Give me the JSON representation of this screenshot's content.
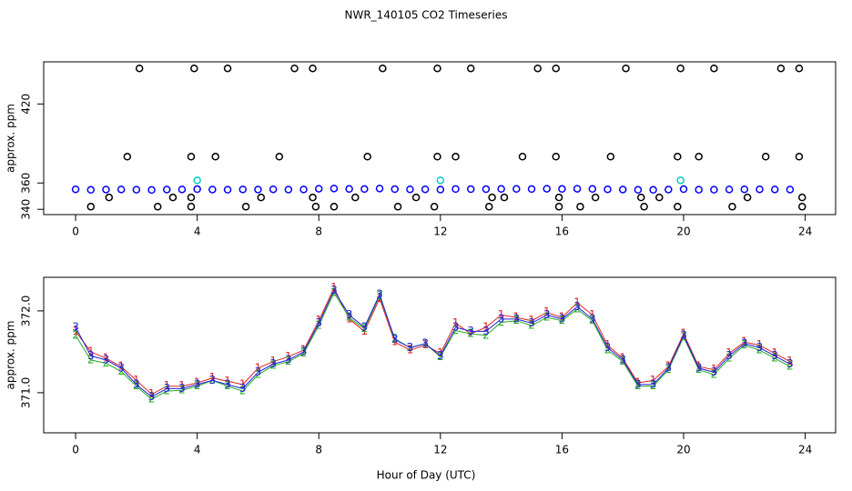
{
  "chart_data": [
    {
      "type": "scatter",
      "title": "NWR_140105  CO2 Timeseries",
      "ylabel": "approx. ppm",
      "xlim": [
        -1.05,
        25.0
      ],
      "xticks": [
        0,
        4,
        8,
        12,
        16,
        20,
        24
      ],
      "ylim": [
        336,
        452
      ],
      "yticks": [
        340,
        360,
        420
      ],
      "series": [
        {
          "color": "#0000ff",
          "x": [
            0,
            0.5,
            1,
            1.5,
            2,
            2.5,
            3,
            3.5,
            4,
            4.5,
            5,
            5.5,
            6,
            6.5,
            7,
            7.5,
            8,
            8.5,
            9,
            9.5,
            10,
            10.5,
            11,
            11.5,
            12,
            12.5,
            13,
            13.5,
            14,
            14.5,
            15,
            15.5,
            16,
            16.5,
            17,
            17.5,
            18,
            18.5,
            19,
            19.5,
            20,
            20.5,
            21,
            21.5,
            22,
            22.5,
            23,
            23.5
          ],
          "values": [
            355.2,
            354.8,
            355.0,
            355.1,
            354.9,
            354.7,
            355.0,
            355.1,
            355.3,
            355.0,
            354.9,
            355.1,
            355.0,
            355.2,
            355.0,
            355.1,
            355.6,
            355.8,
            355.5,
            355.4,
            355.8,
            355.3,
            355.2,
            355.2,
            355.0,
            355.4,
            355.3,
            355.3,
            355.5,
            355.5,
            355.4,
            355.6,
            355.5,
            355.6,
            355.5,
            355.2,
            355.0,
            354.8,
            354.8,
            355.0,
            355.3,
            354.9,
            354.9,
            355.1,
            355.2,
            355.2,
            355.1,
            355.0
          ]
        },
        {
          "color": "#000000",
          "x": [
            2.1,
            3.9,
            5,
            7.2,
            7.8,
            10.1,
            11.9,
            13,
            15.2,
            15.8,
            18.1,
            19.9,
            21,
            23.2,
            23.8,
            1.7,
            3.8,
            4.6,
            6.7,
            9.6,
            11.9,
            12.5,
            14.7,
            15.8,
            17.6,
            19.8,
            20.5,
            22.7,
            23.8,
            1.1,
            3.2,
            3.8,
            6.1,
            7.8,
            9.2,
            11.2,
            13.7,
            14.1,
            15.9,
            17.1,
            18.6,
            19.2,
            22.1,
            23.9,
            0.5,
            2.7,
            3.8,
            5.6,
            7.9,
            8.5,
            10.6,
            11.8,
            13.6,
            15.9,
            16.6,
            18.7,
            19.8,
            21.6,
            23.9
          ],
          "values": [
            447,
            447,
            447,
            447,
            447,
            447,
            447,
            447,
            447,
            447,
            447,
            447,
            447,
            447,
            447,
            380,
            380,
            380,
            380,
            380,
            380,
            380,
            380,
            380,
            380,
            380,
            380,
            380,
            380,
            349,
            349,
            349,
            349,
            349,
            349,
            349,
            349,
            349,
            349,
            349,
            349,
            349,
            349,
            349,
            342,
            342,
            342,
            342,
            342,
            342,
            342,
            342,
            342,
            342,
            342,
            342,
            342,
            342,
            342
          ]
        },
        {
          "color": "#00cccc",
          "x": [
            4,
            12,
            19.9
          ],
          "values": [
            362,
            362,
            362
          ]
        }
      ]
    },
    {
      "type": "line",
      "ylabel": "approx. ppm",
      "xlabel": "Hour of Day (UTC)",
      "xlim": [
        -1.05,
        25.0
      ],
      "xticks": [
        0,
        4,
        8,
        12,
        16,
        20,
        24
      ],
      "ylim": [
        370.51,
        372.41
      ],
      "yticks": [
        {
          "value": 371.0,
          "label": "371.0"
        },
        {
          "value": 372.0,
          "label": "372.0"
        }
      ],
      "x": [
        0,
        0.5,
        1,
        1.5,
        2,
        2.5,
        3,
        3.5,
        4,
        4.5,
        5,
        5.5,
        6,
        6.5,
        7,
        7.5,
        8,
        8.5,
        9,
        9.5,
        10,
        10.5,
        11,
        11.5,
        12,
        12.5,
        13,
        13.5,
        14,
        14.5,
        15,
        15.5,
        16,
        16.5,
        17,
        17.5,
        18,
        18.5,
        19,
        19.5,
        20,
        20.5,
        21,
        21.5,
        22,
        22.5,
        23,
        23.5
      ],
      "series": [
        {
          "marker": "1",
          "color": "#dd2222",
          "values": [
            371.75,
            371.5,
            371.42,
            371.32,
            371.15,
            370.98,
            371.08,
            371.08,
            371.12,
            371.18,
            371.14,
            371.1,
            371.3,
            371.38,
            371.44,
            371.52,
            371.88,
            372.28,
            371.9,
            371.75,
            372.15,
            371.62,
            371.52,
            371.58,
            371.48,
            371.85,
            371.72,
            371.8,
            371.95,
            371.92,
            371.88,
            371.98,
            371.92,
            372.1,
            371.95,
            371.58,
            371.42,
            371.12,
            371.15,
            371.32,
            371.72,
            371.32,
            371.28,
            371.48,
            371.62,
            371.58,
            371.48,
            371.38
          ]
        },
        {
          "marker": "2",
          "color": "#22aa22",
          "values": [
            371.7,
            371.4,
            371.36,
            371.26,
            371.08,
            370.92,
            371.02,
            371.03,
            371.08,
            371.15,
            371.08,
            371.02,
            371.22,
            371.33,
            371.38,
            371.48,
            371.82,
            372.22,
            371.92,
            371.78,
            372.18,
            371.66,
            371.55,
            371.6,
            371.44,
            371.76,
            371.72,
            371.7,
            371.86,
            371.88,
            371.82,
            371.92,
            371.88,
            372.02,
            371.88,
            371.52,
            371.38,
            371.08,
            371.08,
            371.28,
            371.68,
            371.28,
            371.22,
            371.42,
            371.58,
            371.52,
            371.42,
            371.32
          ]
        },
        {
          "marker": "3",
          "color": "#2222dd",
          "values": [
            371.8,
            371.45,
            371.4,
            371.3,
            371.1,
            370.95,
            371.05,
            371.05,
            371.1,
            371.15,
            371.1,
            371.05,
            371.25,
            371.35,
            371.4,
            371.5,
            371.85,
            372.25,
            371.95,
            371.8,
            372.2,
            371.65,
            371.55,
            371.6,
            371.45,
            371.8,
            371.75,
            371.75,
            371.9,
            371.9,
            371.85,
            371.95,
            371.9,
            372.05,
            371.9,
            371.55,
            371.4,
            371.1,
            371.1,
            371.3,
            371.7,
            371.3,
            371.25,
            371.45,
            371.6,
            371.55,
            371.45,
            371.35
          ]
        }
      ]
    }
  ]
}
